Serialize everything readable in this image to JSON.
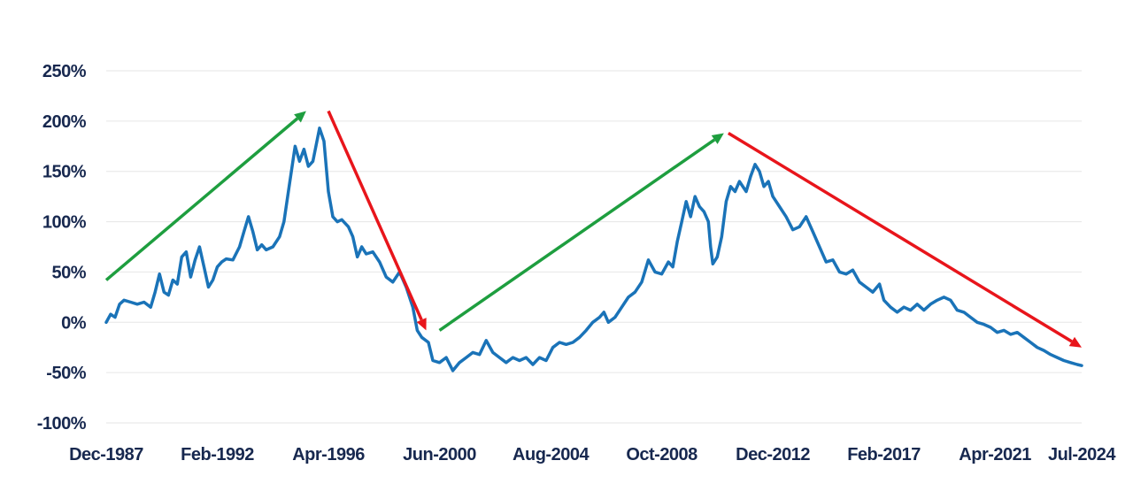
{
  "chart_data": {
    "type": "line",
    "title": "",
    "xlabel": "",
    "ylabel": "",
    "ylim": [
      -100,
      250
    ],
    "y_ticks": [
      250,
      200,
      150,
      100,
      50,
      0,
      -50,
      -100
    ],
    "y_tick_labels": [
      "250%",
      "200%",
      "150%",
      "100%",
      "50%",
      "0%",
      "-50%",
      "-100%"
    ],
    "x_range": [
      "1987-12",
      "2024-07"
    ],
    "x_tick_labels": [
      {
        "date": "1987-12",
        "label": "Dec-1987"
      },
      {
        "date": "1992-02",
        "label": "Feb-1992"
      },
      {
        "date": "1996-04",
        "label": "Apr-1996"
      },
      {
        "date": "2000-06",
        "label": "Jun-2000"
      },
      {
        "date": "2004-08",
        "label": "Aug-2004"
      },
      {
        "date": "2008-10",
        "label": "Oct-2008"
      },
      {
        "date": "2012-12",
        "label": "Dec-2012"
      },
      {
        "date": "2017-02",
        "label": "Feb-2017"
      },
      {
        "date": "2021-04",
        "label": "Apr-2021"
      },
      {
        "date": "2024-07",
        "label": "Jul-2024"
      }
    ],
    "grid": true,
    "line_color": "#1a73b8",
    "series": [
      {
        "points": [
          [
            "1987-12",
            0
          ],
          [
            "1988-02",
            8
          ],
          [
            "1988-04",
            5
          ],
          [
            "1988-06",
            18
          ],
          [
            "1988-08",
            22
          ],
          [
            "1988-11",
            20
          ],
          [
            "1989-02",
            18
          ],
          [
            "1989-05",
            20
          ],
          [
            "1989-08",
            15
          ],
          [
            "1989-10",
            30
          ],
          [
            "1989-12",
            48
          ],
          [
            "1990-02",
            30
          ],
          [
            "1990-04",
            27
          ],
          [
            "1990-06",
            42
          ],
          [
            "1990-08",
            38
          ],
          [
            "1990-10",
            65
          ],
          [
            "1990-12",
            70
          ],
          [
            "1991-02",
            45
          ],
          [
            "1991-04",
            62
          ],
          [
            "1991-06",
            75
          ],
          [
            "1991-08",
            55
          ],
          [
            "1991-10",
            35
          ],
          [
            "1991-12",
            42
          ],
          [
            "1992-02",
            55
          ],
          [
            "1992-04",
            60
          ],
          [
            "1992-06",
            63
          ],
          [
            "1992-09",
            62
          ],
          [
            "1992-12",
            75
          ],
          [
            "1993-02",
            90
          ],
          [
            "1993-04",
            105
          ],
          [
            "1993-06",
            90
          ],
          [
            "1993-08",
            72
          ],
          [
            "1993-10",
            77
          ],
          [
            "1993-12",
            72
          ],
          [
            "1994-03",
            75
          ],
          [
            "1994-06",
            85
          ],
          [
            "1994-08",
            100
          ],
          [
            "1994-10",
            130
          ],
          [
            "1995-01",
            175
          ],
          [
            "1995-03",
            160
          ],
          [
            "1995-05",
            172
          ],
          [
            "1995-07",
            155
          ],
          [
            "1995-09",
            160
          ],
          [
            "1995-12",
            193
          ],
          [
            "1996-02",
            180
          ],
          [
            "1996-04",
            130
          ],
          [
            "1996-06",
            105
          ],
          [
            "1996-08",
            100
          ],
          [
            "1996-10",
            102
          ],
          [
            "1997-01",
            95
          ],
          [
            "1997-03",
            85
          ],
          [
            "1997-05",
            65
          ],
          [
            "1997-07",
            75
          ],
          [
            "1997-09",
            68
          ],
          [
            "1997-12",
            70
          ],
          [
            "1998-03",
            60
          ],
          [
            "1998-06",
            45
          ],
          [
            "1998-09",
            40
          ],
          [
            "1998-12",
            50
          ],
          [
            "1999-03",
            35
          ],
          [
            "1999-06",
            15
          ],
          [
            "1999-08",
            -8
          ],
          [
            "1999-10",
            -15
          ],
          [
            "2000-01",
            -20
          ],
          [
            "2000-03",
            -38
          ],
          [
            "2000-06",
            -40
          ],
          [
            "2000-09",
            -35
          ],
          [
            "2000-12",
            -48
          ],
          [
            "2001-03",
            -40
          ],
          [
            "2001-06",
            -35
          ],
          [
            "2001-09",
            -30
          ],
          [
            "2001-12",
            -32
          ],
          [
            "2002-03",
            -18
          ],
          [
            "2002-06",
            -30
          ],
          [
            "2002-09",
            -35
          ],
          [
            "2002-12",
            -40
          ],
          [
            "2003-03",
            -35
          ],
          [
            "2003-06",
            -38
          ],
          [
            "2003-09",
            -35
          ],
          [
            "2003-12",
            -42
          ],
          [
            "2004-03",
            -35
          ],
          [
            "2004-06",
            -38
          ],
          [
            "2004-09",
            -25
          ],
          [
            "2004-12",
            -20
          ],
          [
            "2005-03",
            -22
          ],
          [
            "2005-06",
            -20
          ],
          [
            "2005-09",
            -15
          ],
          [
            "2005-12",
            -8
          ],
          [
            "2006-03",
            0
          ],
          [
            "2006-06",
            5
          ],
          [
            "2006-08",
            10
          ],
          [
            "2006-10",
            0
          ],
          [
            "2007-01",
            5
          ],
          [
            "2007-04",
            15
          ],
          [
            "2007-07",
            25
          ],
          [
            "2007-10",
            30
          ],
          [
            "2008-01",
            40
          ],
          [
            "2008-04",
            62
          ],
          [
            "2008-07",
            50
          ],
          [
            "2008-10",
            48
          ],
          [
            "2009-01",
            60
          ],
          [
            "2009-03",
            55
          ],
          [
            "2009-05",
            80
          ],
          [
            "2009-07",
            100
          ],
          [
            "2009-09",
            120
          ],
          [
            "2009-11",
            105
          ],
          [
            "2010-01",
            125
          ],
          [
            "2010-03",
            115
          ],
          [
            "2010-05",
            110
          ],
          [
            "2010-07",
            100
          ],
          [
            "2010-08",
            75
          ],
          [
            "2010-09",
            58
          ],
          [
            "2010-11",
            65
          ],
          [
            "2011-01",
            85
          ],
          [
            "2011-03",
            120
          ],
          [
            "2011-05",
            135
          ],
          [
            "2011-07",
            130
          ],
          [
            "2011-09",
            140
          ],
          [
            "2011-12",
            130
          ],
          [
            "2012-02",
            145
          ],
          [
            "2012-04",
            157
          ],
          [
            "2012-06",
            150
          ],
          [
            "2012-08",
            135
          ],
          [
            "2012-10",
            140
          ],
          [
            "2012-12",
            125
          ],
          [
            "2013-03",
            115
          ],
          [
            "2013-06",
            105
          ],
          [
            "2013-09",
            92
          ],
          [
            "2013-12",
            95
          ],
          [
            "2014-03",
            105
          ],
          [
            "2014-06",
            90
          ],
          [
            "2014-09",
            75
          ],
          [
            "2014-12",
            60
          ],
          [
            "2015-03",
            62
          ],
          [
            "2015-06",
            50
          ],
          [
            "2015-09",
            48
          ],
          [
            "2015-12",
            52
          ],
          [
            "2016-03",
            40
          ],
          [
            "2016-06",
            35
          ],
          [
            "2016-09",
            30
          ],
          [
            "2016-12",
            38
          ],
          [
            "2017-02",
            22
          ],
          [
            "2017-05",
            15
          ],
          [
            "2017-08",
            10
          ],
          [
            "2017-11",
            15
          ],
          [
            "2018-02",
            12
          ],
          [
            "2018-05",
            18
          ],
          [
            "2018-08",
            12
          ],
          [
            "2018-11",
            18
          ],
          [
            "2019-02",
            22
          ],
          [
            "2019-05",
            25
          ],
          [
            "2019-08",
            22
          ],
          [
            "2019-11",
            12
          ],
          [
            "2020-02",
            10
          ],
          [
            "2020-05",
            5
          ],
          [
            "2020-08",
            0
          ],
          [
            "2020-11",
            -2
          ],
          [
            "2021-02",
            -5
          ],
          [
            "2021-05",
            -10
          ],
          [
            "2021-08",
            -8
          ],
          [
            "2021-11",
            -12
          ],
          [
            "2022-02",
            -10
          ],
          [
            "2022-05",
            -15
          ],
          [
            "2022-08",
            -20
          ],
          [
            "2022-11",
            -25
          ],
          [
            "2023-02",
            -28
          ],
          [
            "2023-05",
            -32
          ],
          [
            "2023-08",
            -35
          ],
          [
            "2023-11",
            -38
          ],
          [
            "2024-02",
            -40
          ],
          [
            "2024-05",
            -42
          ],
          [
            "2024-07",
            -43
          ]
        ]
      }
    ],
    "arrows": [
      {
        "color": "#1e9e3f",
        "from": [
          "1987-12",
          42
        ],
        "to": [
          "1995-06",
          210
        ]
      },
      {
        "color": "#e8151b",
        "from": [
          "1996-04",
          210
        ],
        "to": [
          "1999-12",
          -8
        ]
      },
      {
        "color": "#1e9e3f",
        "from": [
          "2000-06",
          -8
        ],
        "to": [
          "2011-02",
          188
        ]
      },
      {
        "color": "#e8151b",
        "from": [
          "2011-04",
          188
        ],
        "to": [
          "2024-07",
          -25
        ]
      }
    ]
  }
}
